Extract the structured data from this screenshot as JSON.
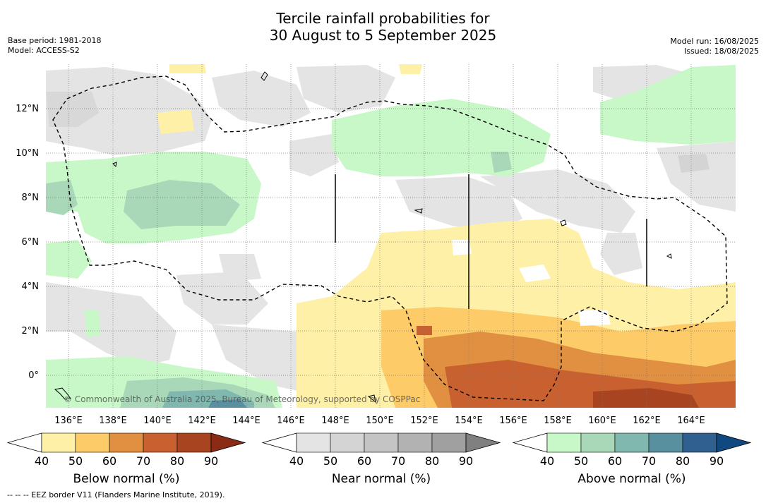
{
  "title": {
    "line1": "Tercile rainfall probabilities for",
    "line2": "30 August to 5 September 2025"
  },
  "meta_left": {
    "base_period": "Base period: 1981-2018",
    "model": "Model: ACCESS-S2"
  },
  "meta_right": {
    "model_run": "Model run: 16/08/2025",
    "issued": "Issued: 18/08/2025"
  },
  "map": {
    "lat_labels": [
      "12°N",
      "10°N",
      "8°N",
      "6°N",
      "4°N",
      "2°N",
      "0°"
    ],
    "lon_labels": [
      "136°E",
      "138°E",
      "140°E",
      "142°E",
      "144°E",
      "146°E",
      "148°E",
      "150°E",
      "152°E",
      "154°E",
      "156°E",
      "158°E",
      "160°E",
      "162°E",
      "164°E"
    ],
    "copyright": "© Commonwealth of Australia 2025, Bureau of Meteorology, supported by COSPPac",
    "colors": {
      "below": [
        "#fff0a8",
        "#fdcb68",
        "#e09040",
        "#c86030",
        "#a84520",
        "#8a2c15"
      ],
      "near": [
        "#e4e4e4",
        "#d4d4d4",
        "#c4c4c4",
        "#b2b2b2",
        "#a0a0a0",
        "#808080"
      ],
      "above": [
        "#c8f8c8",
        "#a8d8b8",
        "#80b8b0",
        "#5890a0",
        "#306090",
        "#104880"
      ]
    }
  },
  "colorbars": [
    {
      "id": "below",
      "title": "Below normal (%)",
      "ticks": [
        "40",
        "50",
        "60",
        "70",
        "80",
        "90"
      ]
    },
    {
      "id": "near",
      "title": "Near normal (%)",
      "ticks": [
        "40",
        "50",
        "60",
        "70",
        "80",
        "90"
      ]
    },
    {
      "id": "above",
      "title": "Above normal (%)",
      "ticks": [
        "40",
        "50",
        "60",
        "70",
        "80",
        "90"
      ]
    }
  ],
  "footnote": "-- -- -- EEZ border V11 (Flanders Marine Institute, 2019)."
}
